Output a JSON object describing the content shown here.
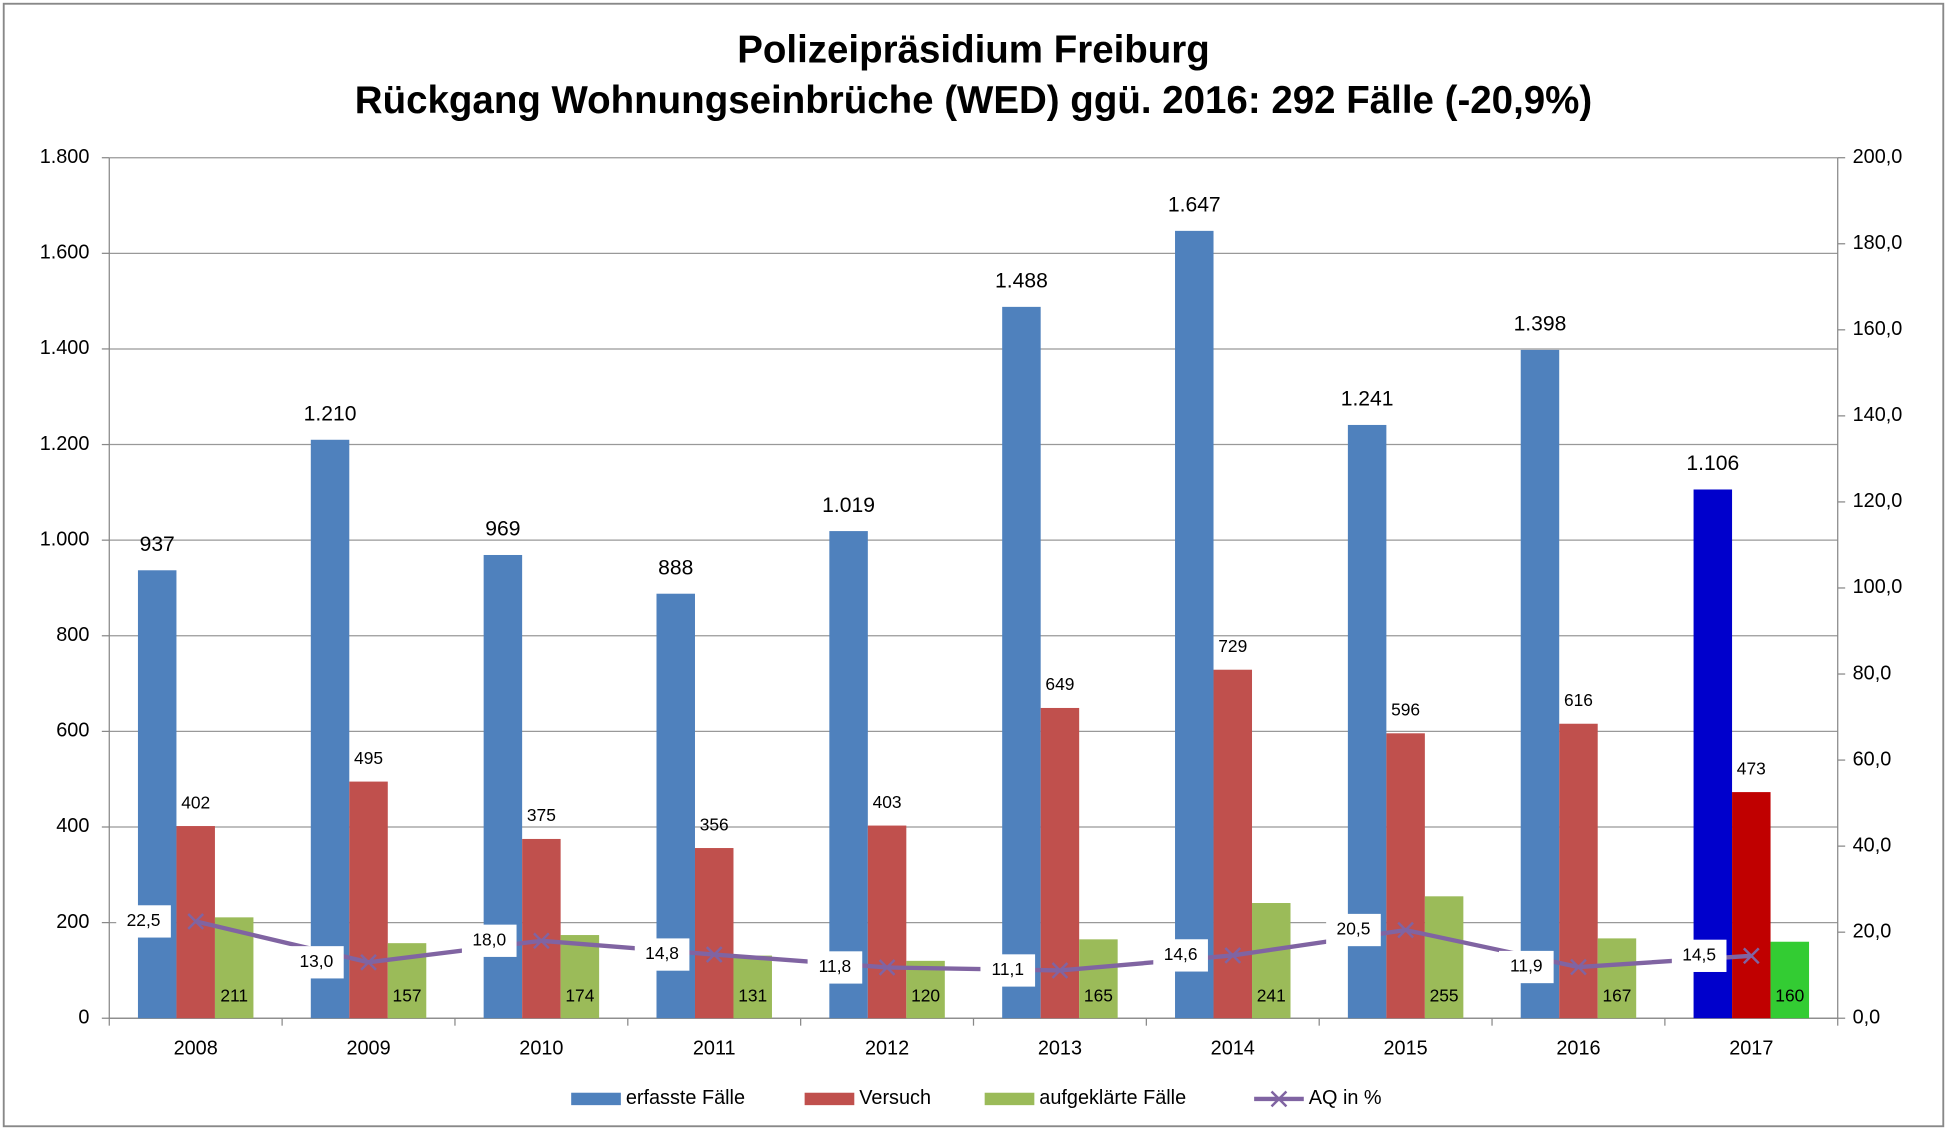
{
  "chart_data": {
    "type": "bar",
    "title": "Polizeipräsidium Freiburg",
    "subtitle": "Rückgang Wohnungseinbrüche (WED) ggü. 2016: 292 Fälle (-20,9%)",
    "categories": [
      "2008",
      "2009",
      "2010",
      "2011",
      "2012",
      "2013",
      "2014",
      "2015",
      "2016",
      "2017"
    ],
    "series": [
      {
        "name": "erfasste Fälle",
        "color": "#4f81bd",
        "point_colors": {
          "9": "#0000cc"
        },
        "values": [
          937,
          1210,
          969,
          888,
          1019,
          1488,
          1647,
          1241,
          1398,
          1106
        ],
        "value_labels": [
          "937",
          "1.210",
          "969",
          "888",
          "1.019",
          "1.488",
          "1.647",
          "1.241",
          "1.398",
          "1.106"
        ]
      },
      {
        "name": "Versuch",
        "color": "#c0504d",
        "point_colors": {
          "9": "#c00000"
        },
        "values": [
          402,
          495,
          375,
          356,
          403,
          649,
          729,
          596,
          616,
          473
        ]
      },
      {
        "name": "aufgeklärte Fälle",
        "color": "#9bbb59",
        "point_colors": {
          "9": "#33cc33"
        },
        "values": [
          211,
          157,
          174,
          131,
          120,
          165,
          241,
          255,
          167,
          160
        ]
      },
      {
        "name": "AQ in %",
        "type": "line",
        "axis": "y2",
        "color": "#8064a2",
        "values": [
          22.5,
          13.0,
          18.0,
          14.8,
          11.8,
          11.1,
          14.6,
          20.5,
          11.9,
          14.5
        ],
        "value_labels": [
          "22,5",
          "13,0",
          "18,0",
          "14,8",
          "11,8",
          "11,1",
          "14,6",
          "20,5",
          "11,9",
          "14,5"
        ]
      }
    ],
    "ylim": [
      0,
      1800
    ],
    "yticks": [
      0,
      {
        "value": 200,
        "label": "200"
      },
      {
        "value": 400,
        "label": "400"
      },
      {
        "value": 600,
        "label": "600"
      },
      {
        "value": 800,
        "label": "800"
      },
      {
        "value": 1000,
        "label": "1.000"
      },
      {
        "value": 1200,
        "label": "1.200"
      },
      {
        "value": 1400,
        "label": "1.400"
      },
      {
        "value": 1600,
        "label": "1.600"
      },
      {
        "value": 1800,
        "label": "1.800"
      }
    ],
    "y2lim": [
      0,
      200
    ],
    "y2ticks": [
      {
        "value": 0,
        "label": "0,0"
      },
      {
        "value": 20,
        "label": "20,0"
      },
      {
        "value": 40,
        "label": "40,0"
      },
      {
        "value": 60,
        "label": "60,0"
      },
      {
        "value": 80,
        "label": "80,0"
      },
      {
        "value": 100,
        "label": "100,0"
      },
      {
        "value": 120,
        "label": "120,0"
      },
      {
        "value": 140,
        "label": "140,0"
      },
      {
        "value": 160,
        "label": "160,0"
      },
      {
        "value": 180,
        "label": "180,0"
      },
      {
        "value": 200,
        "label": "200,0"
      }
    ],
    "grid": true,
    "legend": "bottom"
  }
}
